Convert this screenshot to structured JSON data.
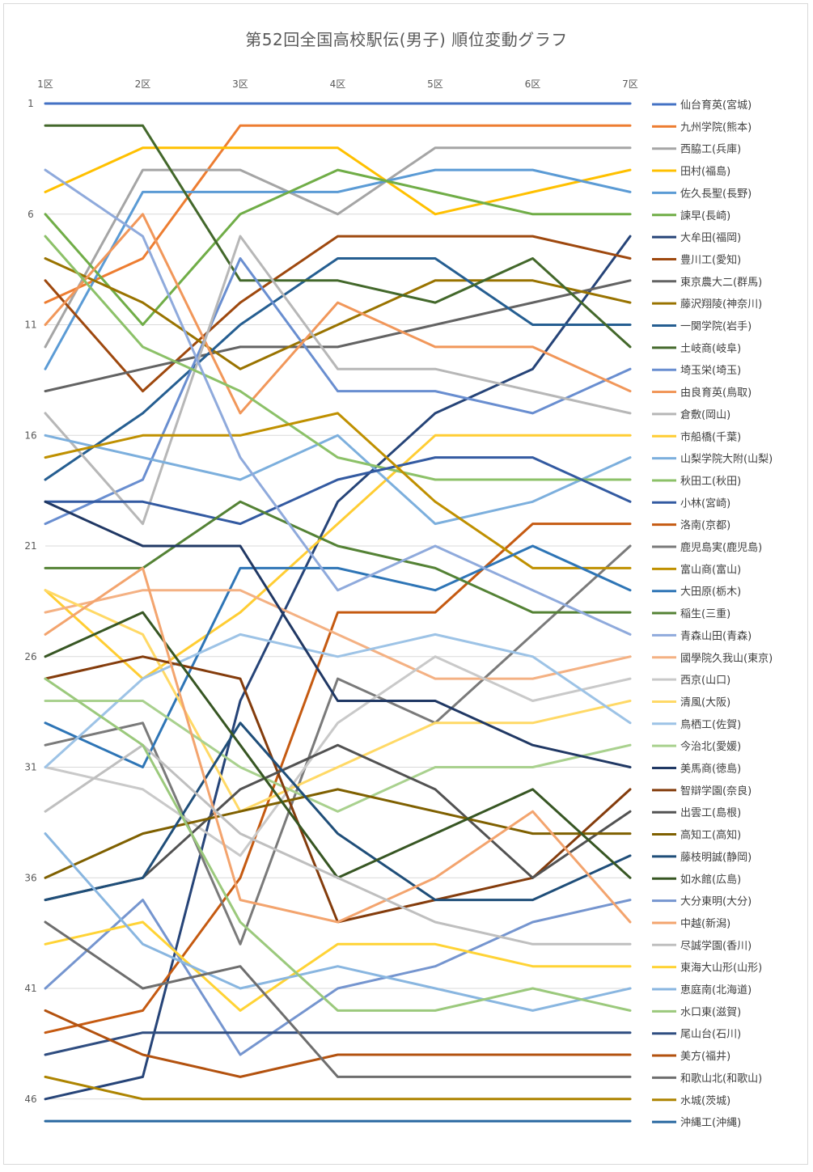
{
  "chart_data": {
    "type": "line",
    "title": "第52回全国高校駅伝(男子) 順位変動グラフ",
    "categories": [
      "1区",
      "2区",
      "3区",
      "4区",
      "5区",
      "6区",
      "7区"
    ],
    "y_ticks": [
      "1",
      "6",
      "11",
      "16",
      "21",
      "26",
      "31",
      "36",
      "41",
      "46"
    ],
    "ylim": [
      1,
      47
    ],
    "y_reversed": true,
    "grid": "horizontal",
    "legend_position": "right",
    "series": [
      {
        "name": "仙台育英(宮城)",
        "color": "#4472C4",
        "values": [
          1,
          1,
          1,
          1,
          1,
          1,
          1
        ]
      },
      {
        "name": "九州学院(熊本)",
        "color": "#ED7D31",
        "values": [
          10,
          8,
          2,
          2,
          2,
          2,
          2
        ]
      },
      {
        "name": "西脇工(兵庫)",
        "color": "#A5A5A5",
        "values": [
          12,
          4,
          4,
          6,
          3,
          3,
          3
        ]
      },
      {
        "name": "田村(福島)",
        "color": "#FFC000",
        "values": [
          5,
          3,
          3,
          3,
          6,
          5,
          4
        ]
      },
      {
        "name": "佐久長聖(長野)",
        "color": "#5B9BD5",
        "values": [
          13,
          5,
          5,
          5,
          4,
          4,
          5
        ]
      },
      {
        "name": "諫早(長崎)",
        "color": "#70AD47",
        "values": [
          6,
          11,
          6,
          4,
          5,
          6,
          6
        ]
      },
      {
        "name": "大牟田(福岡)",
        "color": "#264478",
        "values": [
          46,
          45,
          28,
          19,
          15,
          13,
          7
        ]
      },
      {
        "name": "豊川工(愛知)",
        "color": "#9E480E",
        "values": [
          9,
          14,
          10,
          7,
          7,
          7,
          8
        ]
      },
      {
        "name": "東京農大二(群馬)",
        "color": "#636363",
        "values": [
          14,
          13,
          12,
          12,
          11,
          10,
          9
        ]
      },
      {
        "name": "藤沢翔陵(神奈川)",
        "color": "#997300",
        "values": [
          8,
          10,
          13,
          11,
          9,
          9,
          10
        ]
      },
      {
        "name": "一関学院(岩手)",
        "color": "#255E91",
        "values": [
          18,
          15,
          11,
          8,
          8,
          11,
          11
        ]
      },
      {
        "name": "土岐商(岐阜)",
        "color": "#43682B",
        "values": [
          2,
          2,
          9,
          9,
          10,
          8,
          12
        ]
      },
      {
        "name": "埼玉栄(埼玉)",
        "color": "#698ED0",
        "values": [
          20,
          18,
          8,
          14,
          14,
          15,
          13
        ]
      },
      {
        "name": "由良育英(鳥取)",
        "color": "#F1975A",
        "values": [
          11,
          6,
          15,
          10,
          12,
          12,
          14
        ]
      },
      {
        "name": "倉敷(岡山)",
        "color": "#B7B7B7",
        "values": [
          15,
          20,
          7,
          13,
          13,
          14,
          15
        ]
      },
      {
        "name": "市船橋(千葉)",
        "color": "#FFCD33",
        "values": [
          23,
          27,
          24,
          20,
          16,
          16,
          16
        ]
      },
      {
        "name": "山梨学院大附(山梨)",
        "color": "#7CAFDD",
        "values": [
          16,
          17,
          18,
          16,
          20,
          19,
          17
        ]
      },
      {
        "name": "秋田工(秋田)",
        "color": "#8CC168",
        "values": [
          7,
          12,
          14,
          17,
          18,
          18,
          18
        ]
      },
      {
        "name": "小林(宮崎)",
        "color": "#335AA1",
        "values": [
          19,
          19,
          20,
          18,
          17,
          17,
          19
        ]
      },
      {
        "name": "洛南(京都)",
        "color": "#C55A11",
        "values": [
          43,
          42,
          36,
          24,
          24,
          20,
          20
        ]
      },
      {
        "name": "鹿児島実(鹿児島)",
        "color": "#7A7A7A",
        "values": [
          30,
          29,
          39,
          27,
          29,
          25,
          21
        ]
      },
      {
        "name": "富山商(富山)",
        "color": "#BF9000",
        "values": [
          17,
          16,
          16,
          15,
          19,
          22,
          22
        ]
      },
      {
        "name": "大田原(栃木)",
        "color": "#2E75B6",
        "values": [
          29,
          31,
          22,
          22,
          23,
          21,
          23
        ]
      },
      {
        "name": "稲生(三重)",
        "color": "#548235",
        "values": [
          22,
          22,
          19,
          21,
          22,
          24,
          24
        ]
      },
      {
        "name": "青森山田(青森)",
        "color": "#8FAADC",
        "values": [
          4,
          7,
          17,
          23,
          21,
          23,
          25
        ]
      },
      {
        "name": "國學院久我山(東京)",
        "color": "#F4B183",
        "values": [
          24,
          23,
          23,
          25,
          27,
          27,
          26
        ]
      },
      {
        "name": "西京(山口)",
        "color": "#C9C9C9",
        "values": [
          31,
          32,
          35,
          29,
          26,
          28,
          27
        ]
      },
      {
        "name": "清風(大阪)",
        "color": "#FFD966",
        "values": [
          23,
          25,
          33,
          31,
          29,
          29,
          28
        ]
      },
      {
        "name": "鳥栖工(佐賀)",
        "color": "#9DC3E6",
        "values": [
          31,
          27,
          25,
          26,
          25,
          26,
          29
        ]
      },
      {
        "name": "今治北(愛媛)",
        "color": "#A9D18E",
        "values": [
          28,
          28,
          31,
          33,
          31,
          31,
          30
        ]
      },
      {
        "name": "美馬商(徳島)",
        "color": "#203864",
        "values": [
          19,
          21,
          21,
          28,
          28,
          30,
          31
        ]
      },
      {
        "name": "智辯学園(奈良)",
        "color": "#843C0C",
        "values": [
          27,
          26,
          27,
          38,
          37,
          36,
          32
        ]
      },
      {
        "name": "出雲工(島根)",
        "color": "#525252",
        "values": [
          37,
          36,
          32,
          30,
          32,
          36,
          33
        ]
      },
      {
        "name": "高知工(高知)",
        "color": "#7F6000",
        "values": [
          36,
          34,
          33,
          32,
          33,
          34,
          34
        ]
      },
      {
        "name": "藤枝明誠(静岡)",
        "color": "#1F4E79",
        "values": [
          37,
          36,
          29,
          34,
          37,
          37,
          35
        ]
      },
      {
        "name": "如水館(広島)",
        "color": "#375623",
        "values": [
          26,
          24,
          30,
          36,
          34,
          32,
          36
        ]
      },
      {
        "name": "大分東明(大分)",
        "color": "#7595CF",
        "values": [
          41,
          37,
          44,
          41,
          40,
          38,
          37
        ]
      },
      {
        "name": "中越(新潟)",
        "color": "#F3A46E",
        "values": [
          25,
          22,
          37,
          38,
          36,
          33,
          38
        ]
      },
      {
        "name": "尽誠学園(香川)",
        "color": "#BFBFBF",
        "values": [
          33,
          30,
          34,
          36,
          38,
          39,
          39
        ]
      },
      {
        "name": "東海大山形(山形)",
        "color": "#FFD335",
        "values": [
          39,
          38,
          42,
          39,
          39,
          40,
          40
        ]
      },
      {
        "name": "恵庭南(北海道)",
        "color": "#89B6E0",
        "values": [
          34,
          39,
          41,
          40,
          41,
          42,
          41
        ]
      },
      {
        "name": "水口東(滋賀)",
        "color": "#9BC97C",
        "values": [
          27,
          30,
          38,
          42,
          42,
          41,
          42
        ]
      },
      {
        "name": "尾山台(石川)",
        "color": "#2F4D80",
        "values": [
          44,
          43,
          43,
          43,
          43,
          43,
          43
        ]
      },
      {
        "name": "美方(福井)",
        "color": "#B3520F",
        "values": [
          42,
          44,
          45,
          44,
          44,
          44,
          44
        ]
      },
      {
        "name": "和歌山北(和歌山)",
        "color": "#6E6E6E",
        "values": [
          38,
          41,
          40,
          45,
          45,
          45,
          45
        ]
      },
      {
        "name": "水城(茨城)",
        "color": "#AD8400",
        "values": [
          45,
          46,
          46,
          46,
          46,
          46,
          46
        ]
      },
      {
        "name": "沖縄工(沖縄)",
        "color": "#2868A0",
        "values": [
          47,
          47,
          47,
          47,
          47,
          47,
          47
        ]
      }
    ]
  }
}
